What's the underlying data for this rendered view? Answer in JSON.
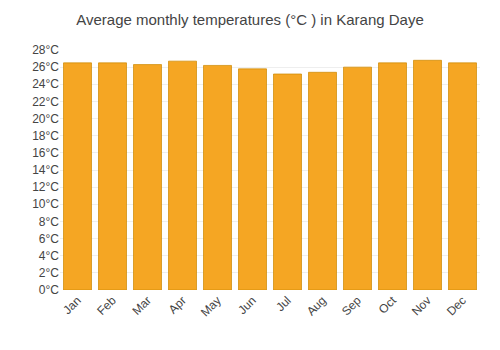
{
  "chart_data": {
    "type": "bar",
    "title": "Average monthly temperatures (°C ) in Karang Daye",
    "categories": [
      "Jan",
      "Feb",
      "Mar",
      "Apr",
      "May",
      "Jun",
      "Jul",
      "Aug",
      "Sep",
      "Oct",
      "Nov",
      "Dec"
    ],
    "values": [
      26.5,
      26.5,
      26.3,
      26.7,
      26.2,
      25.8,
      25.2,
      25.4,
      26.0,
      26.5,
      26.8,
      26.5
    ],
    "color": "#F5A623",
    "ylim": [
      0,
      28
    ],
    "yticks": [
      {
        "value": 0,
        "label": "0°C"
      },
      {
        "value": 2,
        "label": "2°C"
      },
      {
        "value": 4,
        "label": "4°C"
      },
      {
        "value": 6,
        "label": "6°C"
      },
      {
        "value": 8,
        "label": "8°C"
      },
      {
        "value": 10,
        "label": "10°C"
      },
      {
        "value": 12,
        "label": "12°C"
      },
      {
        "value": 14,
        "label": "14°C"
      },
      {
        "value": 16,
        "label": "16°C"
      },
      {
        "value": 18,
        "label": "18°C"
      },
      {
        "value": 20,
        "label": "20°C"
      },
      {
        "value": 22,
        "label": "22°C"
      },
      {
        "value": 24,
        "label": "24°C"
      },
      {
        "value": 26,
        "label": "26°C"
      },
      {
        "value": 28,
        "label": "28°C"
      }
    ],
    "grid": true
  }
}
